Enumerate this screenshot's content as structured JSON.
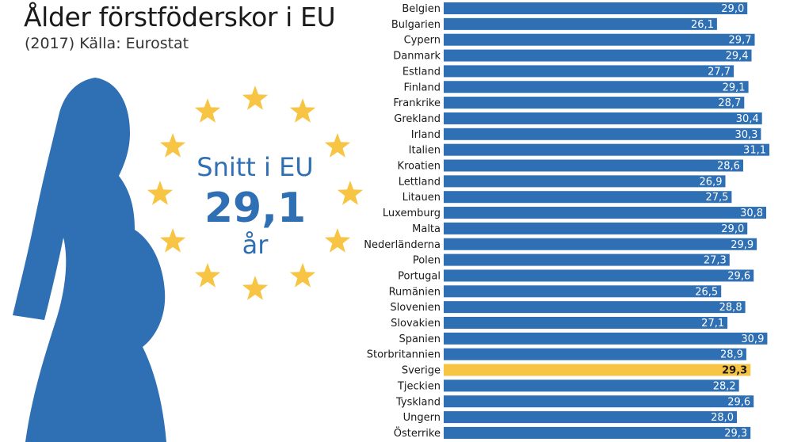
{
  "header": {
    "title": "Ålder förstföderskor i EU",
    "subtitle": "(2017) Källa: Eurostat"
  },
  "callout": {
    "line1": "Snitt i EU",
    "value": "29,1",
    "unit": "år"
  },
  "colors": {
    "bar": "#2f6fb3",
    "highlight": "#f7c443",
    "silhouette": "#2f6fb3",
    "star": "#f7c443",
    "callout_text": "#2f6fb3"
  },
  "icons": {
    "silhouette": "pregnant-woman-silhouette-icon",
    "star": "star-icon"
  },
  "chart_data": {
    "type": "bar",
    "orientation": "horizontal",
    "categories": [
      "Belgien",
      "Bulgarien",
      "Cypern",
      "Danmark",
      "Estland",
      "Finland",
      "Frankrike",
      "Grekland",
      "Irland",
      "Italien",
      "Kroatien",
      "Lettland",
      "Litauen",
      "Luxemburg",
      "Malta",
      "Nederländerna",
      "Polen",
      "Portugal",
      "Rumänien",
      "Slovenien",
      "Slovakien",
      "Spanien",
      "Storbritannien",
      "Sverige",
      "Tjeckien",
      "Tyskland",
      "Ungern",
      "Österrike"
    ],
    "values": [
      29.0,
      26.1,
      29.7,
      29.4,
      27.7,
      29.1,
      28.7,
      30.4,
      30.3,
      31.1,
      28.6,
      26.9,
      27.5,
      30.8,
      29.0,
      29.9,
      27.3,
      29.6,
      26.5,
      28.8,
      27.1,
      30.9,
      28.9,
      29.3,
      28.2,
      29.6,
      28.0,
      29.3
    ],
    "value_labels": [
      "29,0",
      "26,1",
      "29,7",
      "29,4",
      "27,7",
      "29,1",
      "28,7",
      "30,4",
      "30,3",
      "31,1",
      "28,6",
      "26,9",
      "27,5",
      "30,8",
      "29,0",
      "29,9",
      "27,3",
      "29,6",
      "26,5",
      "28,8",
      "27,1",
      "30,9",
      "28,9",
      "29,3",
      "28,2",
      "29,6",
      "28,0",
      "29,3"
    ],
    "highlight": "Sverige",
    "xlim": [
      0,
      31.1
    ],
    "grid": false,
    "legend": "none",
    "title": "Ålder förstföderskor i EU",
    "subtitle": "(2017) Källa: Eurostat"
  }
}
